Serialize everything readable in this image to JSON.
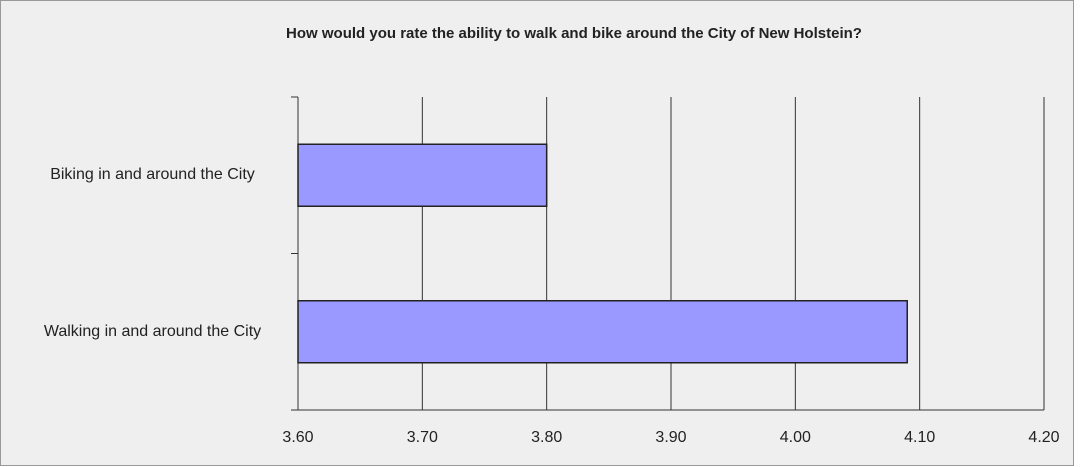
{
  "chart_data": {
    "type": "bar",
    "orientation": "horizontal",
    "title": "How would you rate the ability to walk and bike around the City of New Holstein?",
    "categories": [
      "Biking in and around the City",
      "Walking in and around the City"
    ],
    "values": [
      3.8,
      4.09
    ],
    "color": "#9999ff",
    "xlim": [
      3.6,
      4.2
    ],
    "xticks": [
      {
        "value": 3.6,
        "label": "3.60"
      },
      {
        "value": 3.7,
        "label": "3.70"
      },
      {
        "value": 3.8,
        "label": "3.80"
      },
      {
        "value": 3.9,
        "label": "3.90"
      },
      {
        "value": 4.0,
        "label": "4.00"
      },
      {
        "value": 4.1,
        "label": "4.10"
      },
      {
        "value": 4.2,
        "label": "4.20"
      }
    ],
    "grid": true
  }
}
